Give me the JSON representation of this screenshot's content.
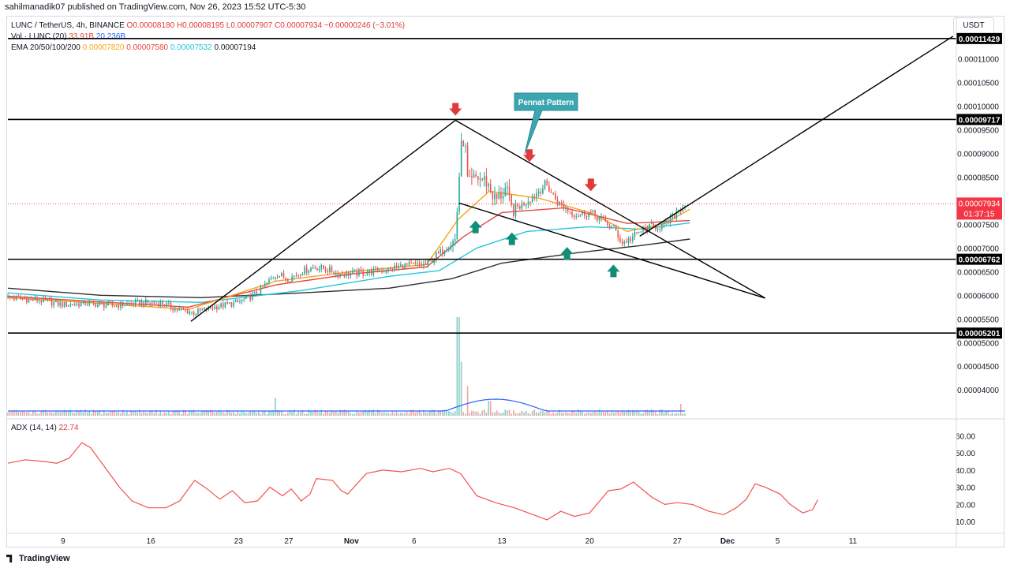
{
  "header": {
    "publisher": "sahilmanadik07 published on TradingView.com, Nov 26, 2023 15:52 UTC-5:30"
  },
  "legend": {
    "symbol": "LUNC / TetherUS, 4h, BINANCE",
    "ohlc_o": "O0.00008180",
    "ohlc_h": "H0.00008195",
    "ohlc_l": "L0.00007907",
    "ohlc_c": "C0.00007934",
    "change": "−0.00000246 (−3.01%)",
    "vol_label": "Vol · LUNC (20)",
    "vol_value": "33.91B",
    "vol_ma": "20.236B",
    "ema_label": "EMA 20/50/100/200",
    "ema_20": "0.00007820",
    "ema_50": "0.00007580",
    "ema_100": "0.00007532",
    "ema_200": "0.00007194",
    "adx_label": "ADX (14, 14)",
    "adx_value": "22.74"
  },
  "currency": "USDT",
  "footer": {
    "brand": "TradingView"
  },
  "annotation": {
    "callout": "Pennat Pattern"
  },
  "colors": {
    "up": "#26a69a",
    "down": "#ef5350",
    "ema20": "#f7a21b",
    "ema50": "#e5473f",
    "ema100": "#26c6da",
    "ema200": "#2e2e2e",
    "adx": "#ef5350",
    "callout": "#3ca6b0",
    "level_label_bg": "#000000",
    "current_price_bg": "#f23645"
  },
  "chart_data": [
    {
      "type": "candlestick",
      "title": "",
      "price_axis": {
        "ylim": [
          3.57e-05,
          0.0001191
        ],
        "ticks": [
          "0.00004000",
          "0.00004500",
          "0.00005000",
          "0.00005500",
          "0.00006000",
          "0.00006500",
          "0.00007000",
          "0.00007500",
          "0.00008500",
          "0.00009000",
          "0.00009500",
          "0.00010000",
          "0.00010500",
          "0.00011000"
        ]
      },
      "time_axis": {
        "ticks": [
          {
            "label": "9",
            "day": 9
          },
          {
            "label": "16",
            "day": 16
          },
          {
            "label": "23",
            "day": 23
          },
          {
            "label": "27",
            "day": 27
          },
          {
            "label": "Nov",
            "day": 32
          },
          {
            "label": "6",
            "day": 37
          },
          {
            "label": "13",
            "day": 44
          },
          {
            "label": "20",
            "day": 51
          },
          {
            "label": "27",
            "day": 58
          },
          {
            "label": "Dec",
            "day": 62
          },
          {
            "label": "5",
            "day": 66
          },
          {
            "label": "11",
            "day": 72
          }
        ]
      },
      "horizontal_levels": [
        "0.00011429",
        "0.00009717",
        "0.00006762",
        "0.00005201"
      ],
      "current_price": "0.00007934",
      "countdown": "01:37:15",
      "price_path": [
        {
          "day": 4.6,
          "p": 5.95e-05
        },
        {
          "day": 7,
          "p": 5.9e-05
        },
        {
          "day": 9,
          "p": 5.8e-05
        },
        {
          "day": 11,
          "p": 5.83e-05
        },
        {
          "day": 13,
          "p": 5.78e-05
        },
        {
          "day": 15,
          "p": 5.84e-05
        },
        {
          "day": 17,
          "p": 5.83e-05
        },
        {
          "day": 18,
          "p": 5.71e-05
        },
        {
          "day": 19.5,
          "p": 5.63e-05
        },
        {
          "day": 21,
          "p": 5.75e-05
        },
        {
          "day": 23,
          "p": 5.85e-05
        },
        {
          "day": 24.5,
          "p": 6.05e-05
        },
        {
          "day": 26,
          "p": 6.45e-05
        },
        {
          "day": 27,
          "p": 6.35e-05
        },
        {
          "day": 28,
          "p": 6.5e-05
        },
        {
          "day": 29,
          "p": 6.6e-05
        },
        {
          "day": 30,
          "p": 6.55e-05
        },
        {
          "day": 31,
          "p": 6.45e-05
        },
        {
          "day": 33,
          "p": 6.48e-05
        },
        {
          "day": 35,
          "p": 6.55e-05
        },
        {
          "day": 36,
          "p": 6.62e-05
        },
        {
          "day": 38,
          "p": 6.65e-05
        },
        {
          "day": 39.5,
          "p": 7e-05
        },
        {
          "day": 40.3,
          "p": 7.18e-05
        },
        {
          "day": 40.7,
          "p": 9e-05
        },
        {
          "day": 41,
          "p": 9.4e-05
        },
        {
          "day": 41.3,
          "p": 8.3e-05
        },
        {
          "day": 42,
          "p": 8.5e-05
        },
        {
          "day": 42.8,
          "p": 8.4e-05
        },
        {
          "day": 43.5,
          "p": 8e-05
        },
        {
          "day": 44.3,
          "p": 8.25e-05
        },
        {
          "day": 44.8,
          "p": 7.8e-05
        },
        {
          "day": 45.5,
          "p": 7.9e-05
        },
        {
          "day": 46.5,
          "p": 8.1e-05
        },
        {
          "day": 47.5,
          "p": 8.35e-05
        },
        {
          "day": 48.5,
          "p": 7.95e-05
        },
        {
          "day": 49.3,
          "p": 7.8e-05
        },
        {
          "day": 50,
          "p": 7.7e-05
        },
        {
          "day": 51,
          "p": 7.75e-05
        },
        {
          "day": 52,
          "p": 7.6e-05
        },
        {
          "day": 53,
          "p": 7.4e-05
        },
        {
          "day": 53.6,
          "p": 7.1e-05
        },
        {
          "day": 54.3,
          "p": 7.2e-05
        },
        {
          "day": 55,
          "p": 7.35e-05
        },
        {
          "day": 56,
          "p": 7.45e-05
        },
        {
          "day": 57,
          "p": 7.48e-05
        },
        {
          "day": 57.5,
          "p": 7.6e-05
        },
        {
          "day": 58,
          "p": 7.8e-05
        },
        {
          "day": 58.7,
          "p": 7.93e-05
        }
      ],
      "ema_paths": {
        "ema200": [
          {
            "day": 4.6,
            "p": 6.15e-05
          },
          {
            "day": 12,
            "p": 6e-05
          },
          {
            "day": 20,
            "p": 5.95e-05
          },
          {
            "day": 28,
            "p": 6.05e-05
          },
          {
            "day": 35,
            "p": 6.15e-05
          },
          {
            "day": 40,
            "p": 6.35e-05
          },
          {
            "day": 44,
            "p": 6.68e-05
          },
          {
            "day": 50,
            "p": 6.9e-05
          },
          {
            "day": 55,
            "p": 7.05e-05
          },
          {
            "day": 59,
            "p": 7.19e-05
          }
        ],
        "ema100": [
          {
            "day": 4.6,
            "p": 6.05e-05
          },
          {
            "day": 12,
            "p": 5.9e-05
          },
          {
            "day": 20,
            "p": 5.85e-05
          },
          {
            "day": 28,
            "p": 6.1e-05
          },
          {
            "day": 35,
            "p": 6.4e-05
          },
          {
            "day": 39,
            "p": 6.52e-05
          },
          {
            "day": 42,
            "p": 7e-05
          },
          {
            "day": 46,
            "p": 7.35e-05
          },
          {
            "day": 51,
            "p": 7.45e-05
          },
          {
            "day": 55,
            "p": 7.4e-05
          },
          {
            "day": 59,
            "p": 7.53e-05
          }
        ],
        "ema50": [
          {
            "day": 4.6,
            "p": 5.98e-05
          },
          {
            "day": 12,
            "p": 5.86e-05
          },
          {
            "day": 19,
            "p": 5.75e-05
          },
          {
            "day": 26,
            "p": 6.22e-05
          },
          {
            "day": 32,
            "p": 6.45e-05
          },
          {
            "day": 38,
            "p": 6.6e-05
          },
          {
            "day": 41,
            "p": 7.25e-05
          },
          {
            "day": 44,
            "p": 7.75e-05
          },
          {
            "day": 49,
            "p": 7.85e-05
          },
          {
            "day": 54,
            "p": 7.52e-05
          },
          {
            "day": 59,
            "p": 7.58e-05
          }
        ],
        "ema20": [
          {
            "day": 4.6,
            "p": 5.95e-05
          },
          {
            "day": 12,
            "p": 5.83e-05
          },
          {
            "day": 19,
            "p": 5.7e-05
          },
          {
            "day": 26,
            "p": 6.3e-05
          },
          {
            "day": 32,
            "p": 6.5e-05
          },
          {
            "day": 38,
            "p": 6.65e-05
          },
          {
            "day": 40.5,
            "p": 7.6e-05
          },
          {
            "day": 43,
            "p": 8.2e-05
          },
          {
            "day": 47,
            "p": 8.05e-05
          },
          {
            "day": 51,
            "p": 7.75e-05
          },
          {
            "day": 54,
            "p": 7.35e-05
          },
          {
            "day": 57,
            "p": 7.52e-05
          },
          {
            "day": 59,
            "p": 7.82e-05
          }
        ]
      },
      "volume_spikes": [
        {
          "day": 26,
          "v": 0.18
        },
        {
          "day": 40.5,
          "v": 1.0
        },
        {
          "day": 40.8,
          "v": 0.55
        },
        {
          "day": 41.2,
          "v": 0.3
        },
        {
          "day": 43,
          "v": 0.15
        },
        {
          "day": 58.2,
          "v": 0.12
        }
      ],
      "drawings": [
        {
          "from": {
            "day": 19.2,
            "p": 5.45e-05
          },
          "to": {
            "day": 40.3,
            "p": 9.7e-05
          }
        },
        {
          "from": {
            "day": 40.3,
            "p": 9.7e-05
          },
          "to": {
            "day": 65,
            "p": 5.94e-05
          }
        },
        {
          "from": {
            "day": 40.6,
            "p": 7.95e-05
          },
          "to": {
            "day": 65,
            "p": 5.94e-05
          }
        },
        {
          "from": {
            "day": 55,
            "p": 7.25e-05
          },
          "to": {
            "day": 80,
            "p": 0.0001148
          }
        }
      ],
      "markers": {
        "down": [
          {
            "day": 40.3,
            "p": 9.8e-05
          },
          {
            "day": 46.2,
            "p": 8.82e-05
          },
          {
            "day": 51.1,
            "p": 8.2e-05
          }
        ],
        "up": [
          {
            "day": 41.9,
            "p": 7.58e-05
          },
          {
            "day": 44.8,
            "p": 7.33e-05
          },
          {
            "day": 49.2,
            "p": 7.02e-05
          },
          {
            "day": 52.9,
            "p": 6.65e-05
          }
        ]
      }
    },
    {
      "type": "line",
      "title": "ADX (14, 14)",
      "ylim": [
        5,
        62
      ],
      "ticks": [
        "10.00",
        "20.00",
        "30.00",
        "40.00",
        "50.00",
        "60.00"
      ],
      "series": [
        {
          "name": "ADX",
          "points": [
            {
              "day": 4.6,
              "v": 44
            },
            {
              "day": 6,
              "v": 46
            },
            {
              "day": 7.5,
              "v": 45
            },
            {
              "day": 8.5,
              "v": 44
            },
            {
              "day": 9.5,
              "v": 47
            },
            {
              "day": 10.5,
              "v": 56
            },
            {
              "day": 11.2,
              "v": 53
            },
            {
              "day": 12.5,
              "v": 40
            },
            {
              "day": 13.5,
              "v": 30
            },
            {
              "day": 14.5,
              "v": 22
            },
            {
              "day": 15.8,
              "v": 18
            },
            {
              "day": 17.2,
              "v": 18
            },
            {
              "day": 18.3,
              "v": 22
            },
            {
              "day": 19.5,
              "v": 34
            },
            {
              "day": 20.5,
              "v": 29
            },
            {
              "day": 21.5,
              "v": 23
            },
            {
              "day": 22.5,
              "v": 28
            },
            {
              "day": 23.5,
              "v": 21
            },
            {
              "day": 24.5,
              "v": 22
            },
            {
              "day": 25.5,
              "v": 30
            },
            {
              "day": 26.5,
              "v": 25
            },
            {
              "day": 27.2,
              "v": 29
            },
            {
              "day": 28,
              "v": 22
            },
            {
              "day": 28.7,
              "v": 26
            },
            {
              "day": 29.2,
              "v": 35
            },
            {
              "day": 30.5,
              "v": 34
            },
            {
              "day": 31.2,
              "v": 28
            },
            {
              "day": 31.7,
              "v": 26
            },
            {
              "day": 33.2,
              "v": 38
            },
            {
              "day": 34.5,
              "v": 40
            },
            {
              "day": 36,
              "v": 39
            },
            {
              "day": 37.5,
              "v": 41
            },
            {
              "day": 38.5,
              "v": 39
            },
            {
              "day": 39.8,
              "v": 41
            },
            {
              "day": 40.7,
              "v": 38
            },
            {
              "day": 42,
              "v": 25
            },
            {
              "day": 43.5,
              "v": 21
            },
            {
              "day": 45,
              "v": 18
            },
            {
              "day": 46.5,
              "v": 14
            },
            {
              "day": 47.6,
              "v": 11
            },
            {
              "day": 48.7,
              "v": 16
            },
            {
              "day": 49.8,
              "v": 13
            },
            {
              "day": 51,
              "v": 15
            },
            {
              "day": 52.5,
              "v": 28
            },
            {
              "day": 53.5,
              "v": 29
            },
            {
              "day": 54.5,
              "v": 33
            },
            {
              "day": 56,
              "v": 24
            },
            {
              "day": 57,
              "v": 20
            },
            {
              "day": 58,
              "v": 21
            },
            {
              "day": 59.2,
              "v": 20
            },
            {
              "day": 60.5,
              "v": 16
            },
            {
              "day": 61.7,
              "v": 14
            },
            {
              "day": 62.7,
              "v": 18
            },
            {
              "day": 63.5,
              "v": 23
            },
            {
              "day": 64.2,
              "v": 32
            },
            {
              "day": 65,
              "v": 30
            },
            {
              "day": 66.2,
              "v": 26
            },
            {
              "day": 67,
              "v": 20
            },
            {
              "day": 68,
              "v": 15
            },
            {
              "day": 68.8,
              "v": 17
            },
            {
              "day": 69.2,
              "v": 22.74
            }
          ]
        }
      ]
    }
  ]
}
